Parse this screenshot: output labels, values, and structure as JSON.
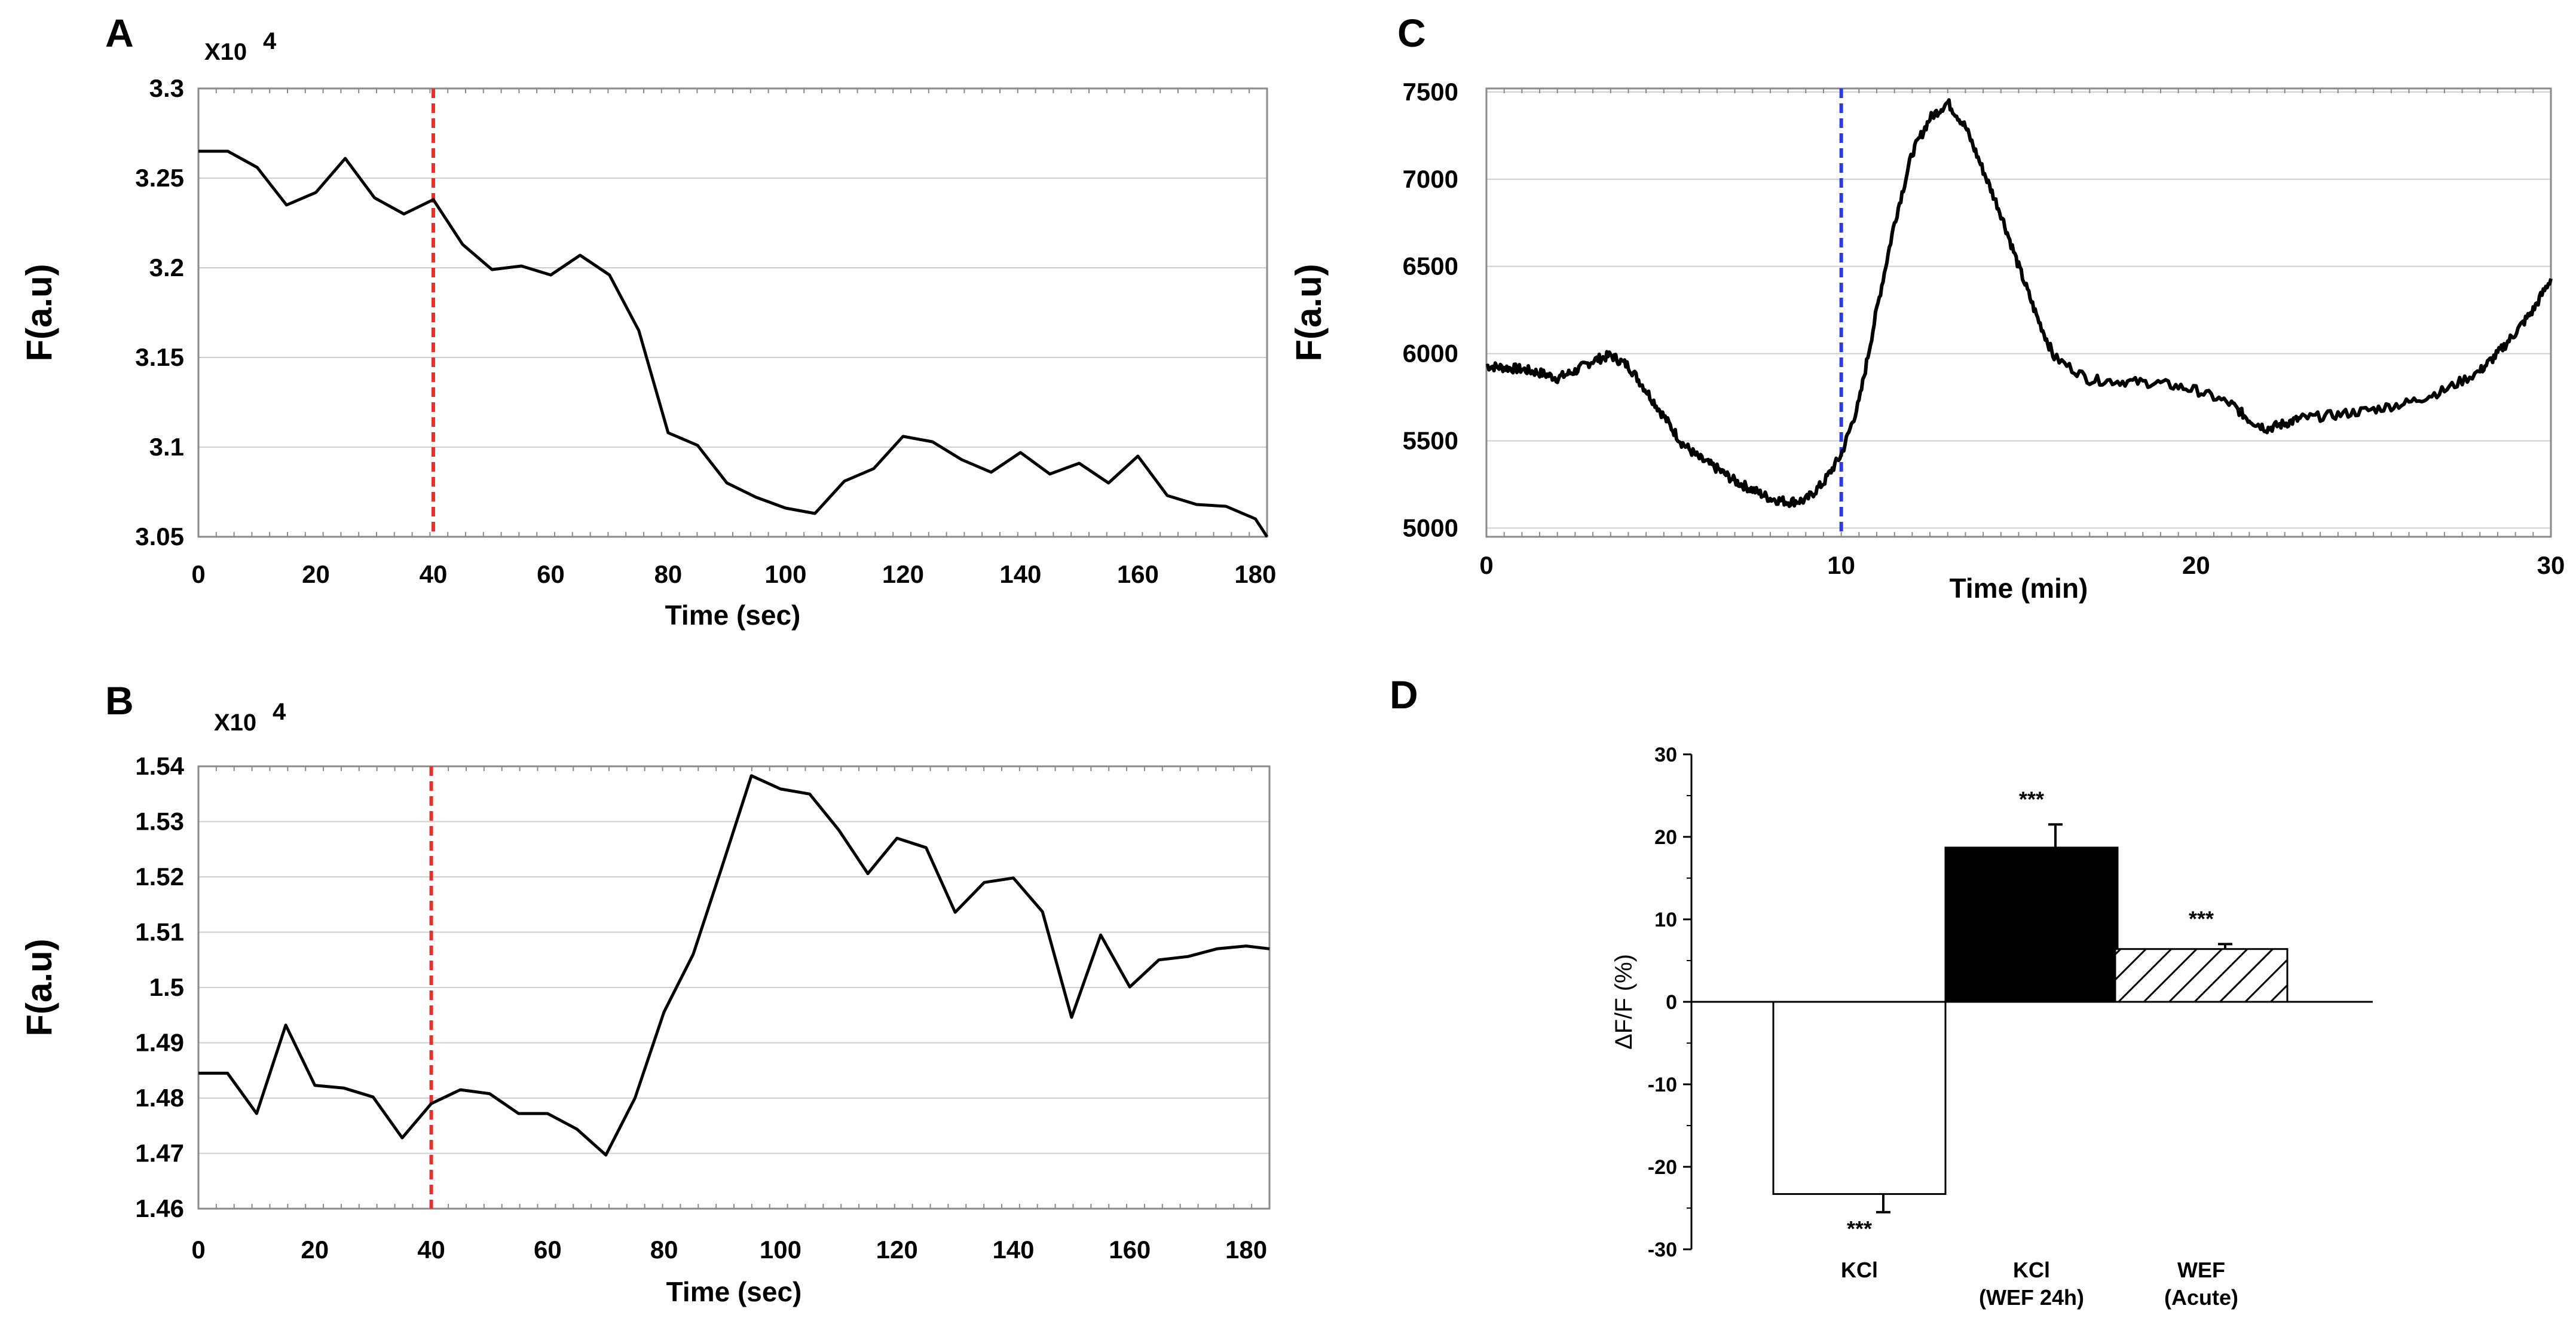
{
  "chart_data": [
    {
      "id": "A",
      "panel_label": "A",
      "type": "line",
      "multiplier_label": "X10",
      "multiplier_exp": "4",
      "xlabel": "Time (sec)",
      "ylabel": "F(a.u)",
      "xlim": [
        0,
        182
      ],
      "ylim": [
        3.05,
        3.3
      ],
      "xticks": [
        "0",
        "20",
        "40",
        "60",
        "80",
        "100",
        "120",
        "140",
        "160",
        "180"
      ],
      "yticks": [
        "3.05",
        "3.1",
        "3.15",
        "3.2",
        "3.25",
        "3.3"
      ],
      "grid": "horizontal",
      "marker_line": {
        "x": 40,
        "color": "#e8302a",
        "style": "dashed"
      },
      "line_color": "#000000",
      "series": [
        {
          "name": "F",
          "x": [
            0,
            5,
            10,
            15,
            20,
            25,
            30,
            35,
            40,
            45,
            50,
            55,
            60,
            65,
            70,
            75,
            80,
            85,
            90,
            95,
            100,
            105,
            110,
            115,
            120,
            125,
            130,
            135,
            140,
            145,
            150,
            155,
            160,
            165,
            170,
            175,
            180,
            182
          ],
          "values": [
            3.265,
            3.265,
            3.256,
            3.235,
            3.242,
            3.261,
            3.239,
            3.23,
            3.238,
            3.213,
            3.199,
            3.201,
            3.196,
            3.207,
            3.196,
            3.165,
            3.108,
            3.101,
            3.08,
            3.072,
            3.066,
            3.063,
            3.081,
            3.088,
            3.106,
            3.103,
            3.093,
            3.086,
            3.097,
            3.085,
            3.091,
            3.08,
            3.095,
            3.073,
            3.068,
            3.067,
            3.06,
            3.05
          ]
        }
      ]
    },
    {
      "id": "B",
      "panel_label": "B",
      "type": "line",
      "multiplier_label": "X10",
      "multiplier_exp": "4",
      "xlabel": "Time (sec)",
      "ylabel": "F(a.u)",
      "xlim": [
        0,
        184
      ],
      "ylim": [
        1.46,
        1.54
      ],
      "xticks": [
        "0",
        "20",
        "40",
        "60",
        "80",
        "100",
        "120",
        "140",
        "160",
        "180"
      ],
      "yticks": [
        "1.46",
        "1.47",
        "1.48",
        "1.49",
        "1.5",
        "1.51",
        "1.52",
        "1.53",
        "1.54"
      ],
      "grid": "horizontal",
      "marker_line": {
        "x": 40,
        "color": "#e8302a",
        "style": "dashed"
      },
      "line_color": "#000000",
      "series": [
        {
          "name": "F",
          "x": [
            0,
            5,
            10,
            15,
            20,
            25,
            30,
            35,
            40,
            45,
            50,
            55,
            60,
            65,
            70,
            75,
            80,
            85,
            90,
            95,
            100,
            105,
            110,
            115,
            120,
            125,
            130,
            135,
            140,
            145,
            150,
            155,
            160,
            165,
            170,
            175,
            180,
            184
          ],
          "values": [
            1.4845,
            1.4845,
            1.4772,
            1.4932,
            1.4823,
            1.4818,
            1.4802,
            1.4728,
            1.479,
            1.4815,
            1.4808,
            1.4772,
            1.4772,
            1.4744,
            1.4697,
            1.48,
            1.4956,
            1.506,
            1.522,
            1.5383,
            1.5359,
            1.535,
            1.5285,
            1.5206,
            1.527,
            1.5253,
            1.5136,
            1.519,
            1.5198,
            1.5137,
            1.4946,
            1.5095,
            1.5001,
            1.505,
            1.5056,
            1.507,
            1.5075,
            1.507
          ]
        }
      ]
    },
    {
      "id": "C",
      "panel_label": "C",
      "type": "line",
      "xlabel": "Time  (min)",
      "ylabel": "F(a.u)",
      "xlim": [
        0,
        30
      ],
      "ylim": [
        4950,
        7520
      ],
      "xticks": [
        "0",
        "10",
        "20",
        "30"
      ],
      "yticks": [
        "5000",
        "5500",
        "6000",
        "6500",
        "7000",
        "7500"
      ],
      "grid": "horizontal",
      "marker_line": {
        "x": 10,
        "color": "#2d3ce0",
        "style": "dashed"
      },
      "line_color": "#000000",
      "series": [
        {
          "name": "F",
          "x": [
            0,
            0.5,
            1,
            1.5,
            2,
            2.5,
            3,
            3.5,
            4,
            4.5,
            5,
            5.5,
            6,
            6.5,
            7,
            7.5,
            8,
            8.5,
            9,
            9.5,
            10,
            10.5,
            11,
            11.5,
            12,
            12.5,
            13,
            13.5,
            14,
            14.5,
            15,
            15.5,
            16,
            17,
            18,
            19,
            20,
            21,
            21.5,
            22,
            22.5,
            23,
            24,
            25,
            26,
            27,
            28,
            28.5,
            29,
            29.5,
            30
          ],
          "values": [
            5930,
            5920,
            5910,
            5890,
            5860,
            5900,
            5960,
            5990,
            5930,
            5790,
            5640,
            5490,
            5400,
            5340,
            5270,
            5220,
            5170,
            5150,
            5160,
            5260,
            5420,
            5720,
            6250,
            6750,
            7150,
            7350,
            7440,
            7300,
            7050,
            6800,
            6500,
            6220,
            5980,
            5850,
            5840,
            5830,
            5790,
            5710,
            5620,
            5570,
            5600,
            5630,
            5650,
            5680,
            5720,
            5790,
            5900,
            6000,
            6120,
            6250,
            6430
          ]
        }
      ]
    },
    {
      "id": "D",
      "panel_label": "D",
      "type": "bar",
      "ylabel": "ΔF/F (%)",
      "ylim": [
        -30,
        30
      ],
      "yticks": [
        "-30",
        "-20",
        "-10",
        "0",
        "10",
        "20",
        "30"
      ],
      "categories": [
        {
          "line1": "KCl",
          "line2": ""
        },
        {
          "line1": "KCl",
          "line2": "(WEF 24h)"
        },
        {
          "line1": "WEF",
          "line2": "(Acute)"
        }
      ],
      "values": [
        -23.3,
        18.7,
        6.4
      ],
      "errors": [
        2.2,
        2.8,
        0.6
      ],
      "fills": [
        "white",
        "black",
        "hatched"
      ],
      "significance": [
        "***",
        "***",
        "***"
      ]
    }
  ]
}
